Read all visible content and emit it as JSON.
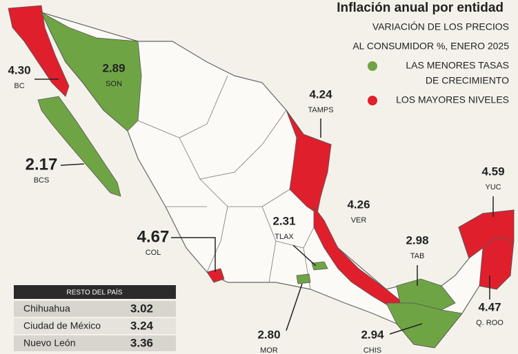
{
  "header": {
    "title": "Inflación anual por entidad",
    "subtitle": [
      "VARIACIÓN DE LOS PRECIOS",
      "AL CONSUMIDOR %, ENERO 2025"
    ]
  },
  "legend": [
    {
      "label": [
        "LAS MENORES TASAS",
        "DE CRECIMIENTO"
      ],
      "color": "#6fa445"
    },
    {
      "label": [
        "LOS MAYORES NIVELES"
      ],
      "color": "#e01f2d"
    }
  ],
  "regions": [
    {
      "abbr": "BC",
      "value": 4.3,
      "value_label": "4.30",
      "color": "#e01f2d"
    },
    {
      "abbr": "SON",
      "value": 2.89,
      "value_label": "2.89",
      "color": "#6fa445"
    },
    {
      "abbr": "BCS",
      "value": 2.17,
      "value_label": "2.17",
      "color": "#6fa445"
    },
    {
      "abbr": "TAMPS",
      "value": 4.24,
      "value_label": "4.24",
      "color": "#e01f2d"
    },
    {
      "abbr": "VER",
      "value": 4.26,
      "value_label": "4.26",
      "color": "#e01f2d"
    },
    {
      "abbr": "YUC",
      "value": 4.59,
      "value_label": "4.59",
      "color": "#e01f2d"
    },
    {
      "abbr": "Q. ROO",
      "value": 4.47,
      "value_label": "4.47",
      "color": "#e01f2d"
    },
    {
      "abbr": "TAB",
      "value": 2.98,
      "value_label": "2.98",
      "color": "#6fa445"
    },
    {
      "abbr": "CHIS",
      "value": 2.94,
      "value_label": "2.94",
      "color": "#6fa445"
    },
    {
      "abbr": "MOR",
      "value": 2.8,
      "value_label": "2.80",
      "color": "#6fa445"
    },
    {
      "abbr": "TLAX",
      "value": 2.31,
      "value_label": "2.31",
      "color": "#6fa445"
    },
    {
      "abbr": "COL",
      "value": 4.67,
      "value_label": "4.67",
      "color": "#e01f2d"
    }
  ],
  "table": {
    "title": "RESTO DEL PAÍS",
    "rows": [
      [
        "Chihuahua",
        "3.02"
      ],
      [
        "Ciudad de México",
        "3.24"
      ],
      [
        "Nuevo León",
        "3.36"
      ]
    ]
  }
}
